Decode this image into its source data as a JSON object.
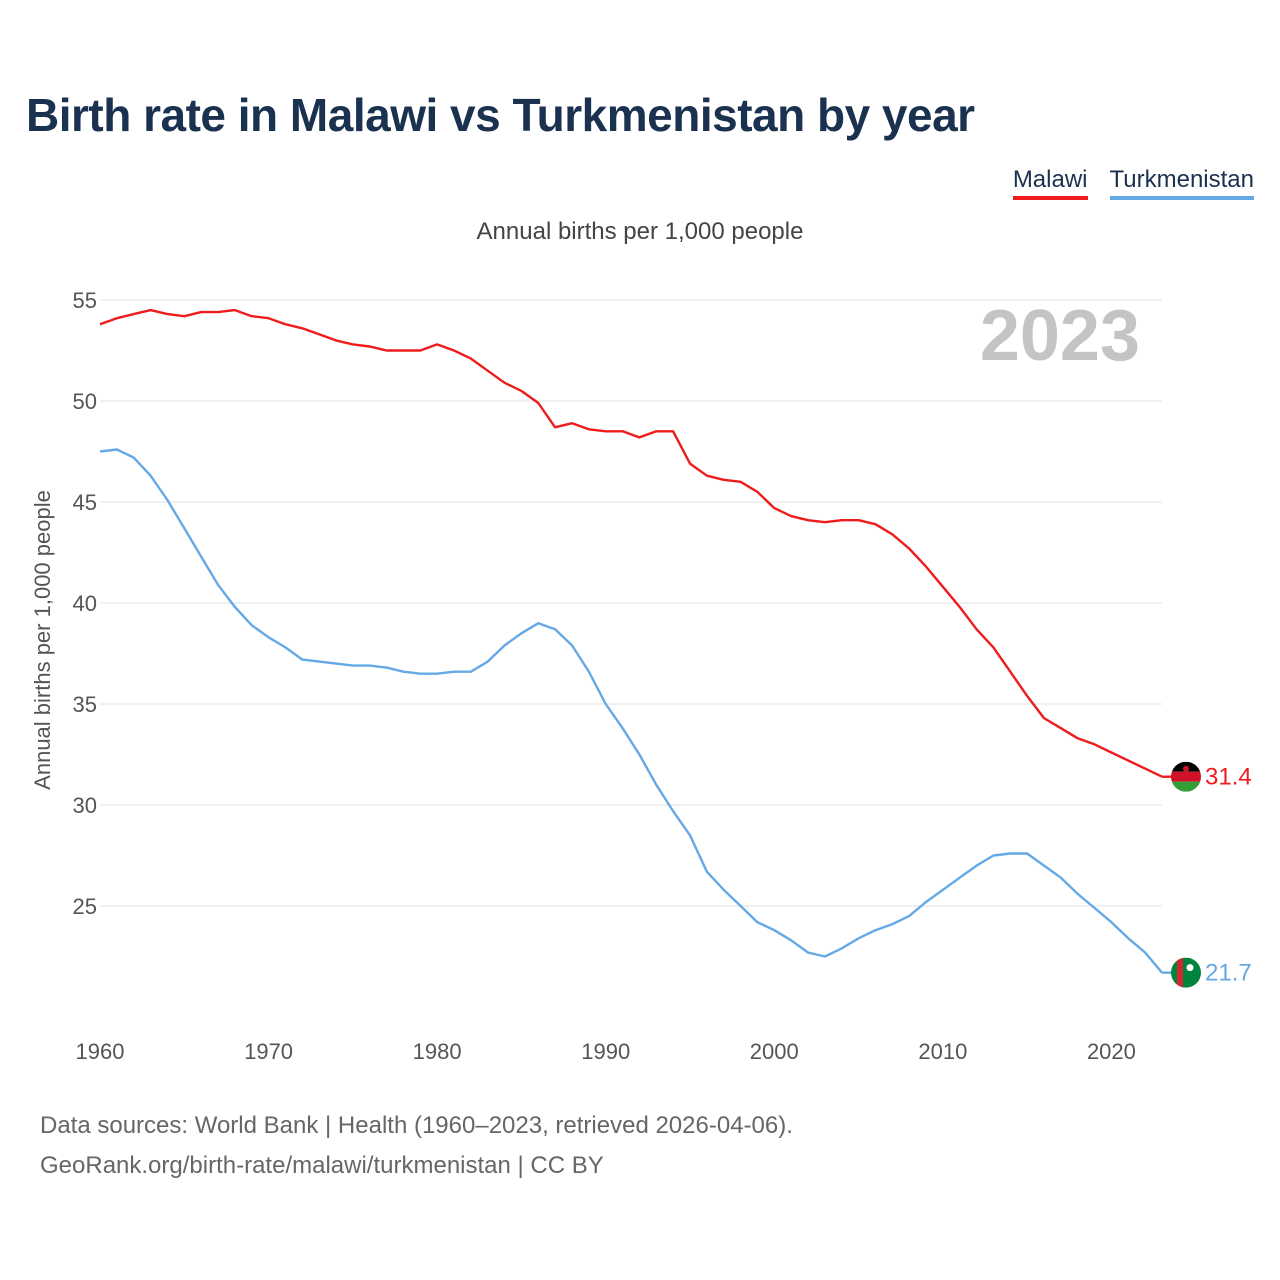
{
  "title": "Birth rate in Malawi vs Turkmenistan by year",
  "legend": [
    {
      "name": "Malawi",
      "color": "#ee1c1c"
    },
    {
      "name": "Turkmenistan",
      "color": "#64a9e6"
    }
  ],
  "subtitle": "Annual births per 1,000 people",
  "year_watermark": "2023",
  "source": {
    "line1": "Data sources: World Bank | Health (1960–2023, retrieved 2026-04-06).",
    "line2": "GeoRank.org/birth-rate/malawi/turkmenistan | CC BY"
  },
  "chart_data": {
    "type": "line",
    "title": "Birth rate in Malawi vs Turkmenistan by year",
    "xlabel": "",
    "ylabel": "Annual births per 1,000 people",
    "xlim": [
      1960,
      2023
    ],
    "ylim": [
      20,
      56
    ],
    "xticks": [
      1960,
      1970,
      1980,
      1990,
      2000,
      2010,
      2020
    ],
    "yticks": [
      25,
      30,
      35,
      40,
      45,
      50,
      55
    ],
    "grid": true,
    "legend_position": "top-right",
    "x": [
      1960,
      1961,
      1962,
      1963,
      1964,
      1965,
      1966,
      1967,
      1968,
      1969,
      1970,
      1971,
      1972,
      1973,
      1974,
      1975,
      1976,
      1977,
      1978,
      1979,
      1980,
      1981,
      1982,
      1983,
      1984,
      1985,
      1986,
      1987,
      1988,
      1989,
      1990,
      1991,
      1992,
      1993,
      1994,
      1995,
      1996,
      1997,
      1998,
      1999,
      2000,
      2001,
      2002,
      2003,
      2004,
      2005,
      2006,
      2007,
      2008,
      2009,
      2010,
      2011,
      2012,
      2013,
      2014,
      2015,
      2016,
      2017,
      2018,
      2019,
      2020,
      2021,
      2022,
      2023
    ],
    "series": [
      {
        "name": "Malawi",
        "color": "#ee1c1c",
        "end_label": "31.4",
        "values": [
          53.8,
          54.1,
          54.3,
          54.5,
          54.3,
          54.2,
          54.4,
          54.4,
          54.5,
          54.2,
          54.1,
          53.8,
          53.6,
          53.3,
          53.0,
          52.8,
          52.7,
          52.5,
          52.5,
          52.5,
          52.8,
          52.5,
          52.1,
          51.5,
          50.9,
          50.5,
          49.9,
          48.7,
          48.9,
          48.6,
          48.5,
          48.5,
          48.2,
          48.5,
          48.5,
          46.9,
          46.3,
          46.1,
          46.0,
          45.5,
          44.7,
          44.3,
          44.1,
          44.0,
          44.1,
          44.1,
          43.9,
          43.4,
          42.7,
          41.8,
          40.8,
          39.8,
          38.7,
          37.8,
          36.6,
          35.4,
          34.3,
          33.8,
          33.3,
          33.0,
          32.6,
          32.2,
          31.8,
          31.4
        ]
      },
      {
        "name": "Turkmenistan",
        "color": "#64a9e6",
        "end_label": "21.7",
        "values": [
          47.5,
          47.6,
          47.2,
          46.3,
          45.1,
          43.7,
          42.3,
          40.9,
          39.8,
          38.9,
          38.3,
          37.8,
          37.2,
          37.1,
          37.0,
          36.9,
          36.9,
          36.8,
          36.6,
          36.5,
          36.5,
          36.6,
          36.6,
          37.1,
          37.9,
          38.5,
          39.0,
          38.7,
          37.9,
          36.6,
          35.0,
          33.8,
          32.5,
          31.0,
          29.7,
          28.5,
          26.7,
          25.8,
          25.0,
          24.2,
          23.8,
          23.3,
          22.7,
          22.5,
          22.9,
          23.4,
          23.8,
          24.1,
          24.5,
          25.2,
          25.8,
          26.4,
          27.0,
          27.5,
          27.6,
          27.6,
          27.0,
          26.4,
          25.6,
          24.9,
          24.2,
          23.4,
          22.7,
          21.7
        ]
      }
    ]
  }
}
